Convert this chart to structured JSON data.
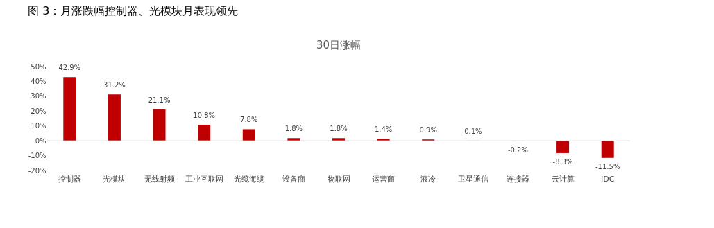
{
  "chart_data": {
    "type": "bar",
    "title": "图 3：月涨跌幅控制器、光模块月表现领先",
    "subtitle": "30日涨幅",
    "categories": [
      "控制器",
      "光模块",
      "无线射频",
      "工业互联网",
      "光缆海缆",
      "设备商",
      "物联网",
      "运营商",
      "液冷",
      "卫星通信",
      "连接器",
      "云计算",
      "IDC"
    ],
    "values": [
      42.9,
      31.2,
      21.1,
      10.8,
      7.8,
      1.8,
      1.8,
      1.4,
      0.9,
      0.1,
      -0.2,
      -8.3,
      -11.5
    ],
    "value_labels": [
      "42.9%",
      "31.2%",
      "21.1%",
      "10.8%",
      "7.8%",
      "1.8%",
      "1.8%",
      "1.4%",
      "0.9%",
      "0.1%",
      "-0.2%",
      "-8.3%",
      "-11.5%"
    ],
    "color": "#c00000",
    "ylim": [
      -20,
      50
    ],
    "yticks": [
      {
        "value": 50,
        "label": "50%"
      },
      {
        "value": 40,
        "label": "40%"
      },
      {
        "value": 30,
        "label": "30%"
      },
      {
        "value": 20,
        "label": "20%"
      },
      {
        "value": 10,
        "label": "10%"
      },
      {
        "value": 0,
        "label": "0%"
      },
      {
        "value": -10,
        "label": "-10%"
      },
      {
        "value": -20,
        "label": "-20%"
      }
    ],
    "ref_lines": [
      {
        "axis": "y",
        "value": 0,
        "color": "#d9d9d9"
      }
    ],
    "grid": false
  }
}
